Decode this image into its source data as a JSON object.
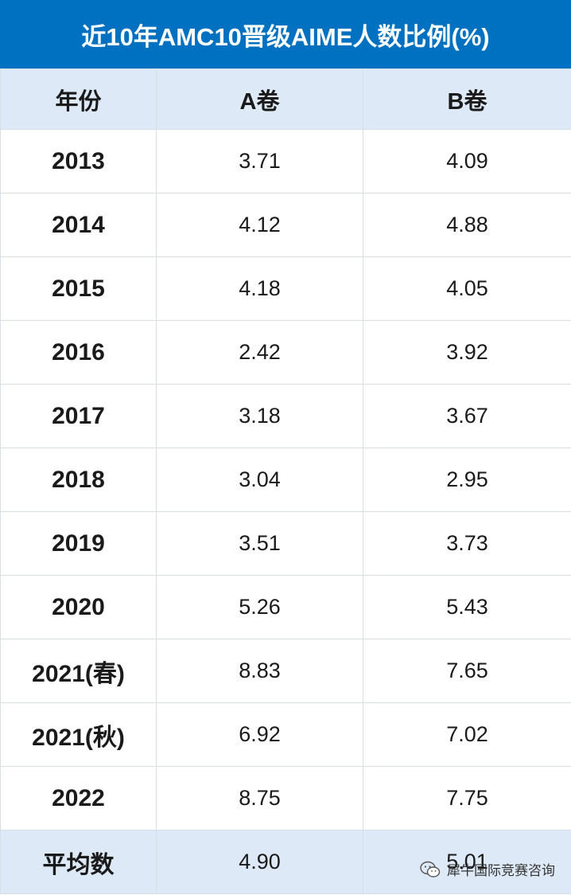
{
  "title": "近10年AMC10晋级AIME人数比例(%)",
  "table": {
    "headers": [
      "年份",
      "A卷",
      "B卷"
    ],
    "rows": [
      {
        "year": "2013",
        "a": "3.71",
        "b": "4.09"
      },
      {
        "year": "2014",
        "a": "4.12",
        "b": "4.88"
      },
      {
        "year": "2015",
        "a": "4.18",
        "b": "4.05"
      },
      {
        "year": "2016",
        "a": "2.42",
        "b": "3.92"
      },
      {
        "year": "2017",
        "a": "3.18",
        "b": "3.67"
      },
      {
        "year": "2018",
        "a": "3.04",
        "b": "2.95"
      },
      {
        "year": "2019",
        "a": "3.51",
        "b": "3.73"
      },
      {
        "year": "2020",
        "a": "5.26",
        "b": "5.43"
      },
      {
        "year": "2021(春)",
        "a": "8.83",
        "b": "7.65"
      },
      {
        "year": "2021(秋)",
        "a": "6.92",
        "b": "7.02"
      },
      {
        "year": "2022",
        "a": "8.75",
        "b": "7.75"
      }
    ],
    "average": {
      "label": "平均数",
      "a": "4.90",
      "b": "5.01"
    }
  },
  "watermark": {
    "icon": "wechat-icon",
    "text": "犀牛国际竞赛咨询"
  },
  "colors": {
    "title_bg": "#0070c0",
    "header_bg": "#dde9f6",
    "border": "#d8dee6"
  }
}
